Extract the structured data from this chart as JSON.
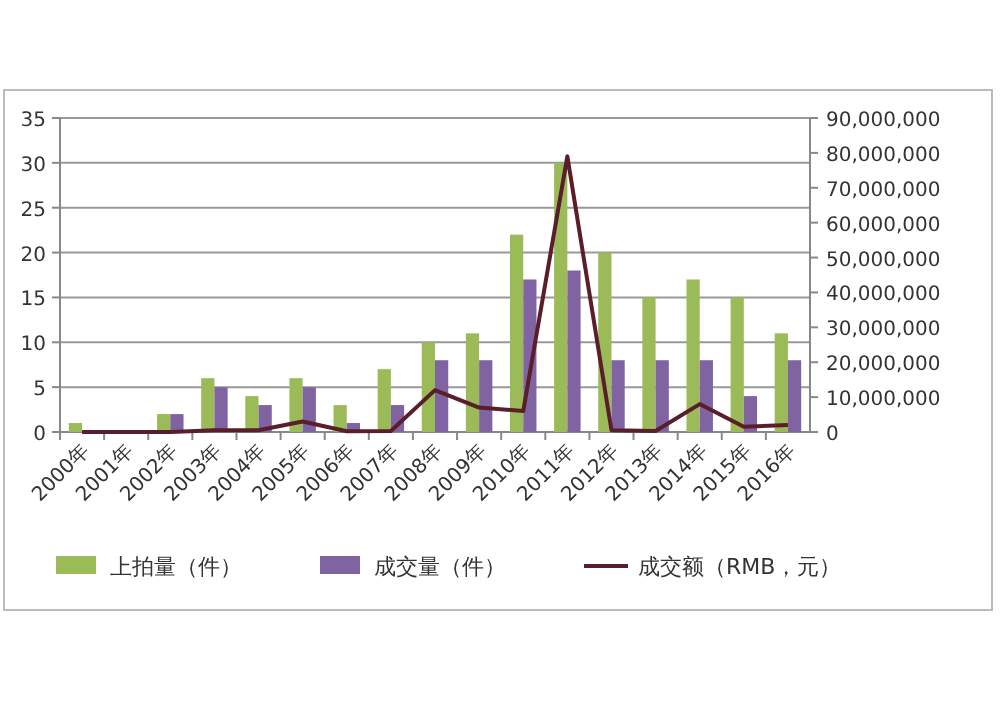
{
  "chart_data": {
    "type": "bar",
    "categories": [
      "2000年",
      "2001年",
      "2002年",
      "2003年",
      "2004年",
      "2005年",
      "2006年",
      "2007年",
      "2008年",
      "2009年",
      "2010年",
      "2011年",
      "2012年",
      "2013年",
      "2014年",
      "2015年",
      "2016年"
    ],
    "series": [
      {
        "name": "上拍量（件）",
        "color": "#9bbb59",
        "values": [
          1,
          0,
          2,
          6,
          4,
          6,
          3,
          7,
          10,
          11,
          22,
          30,
          20,
          15,
          17,
          15,
          11
        ]
      },
      {
        "name": "成交量（件）",
        "color": "#8064a2",
        "values": [
          0,
          0,
          2,
          5,
          3,
          5,
          1,
          3,
          8,
          8,
          17,
          18,
          8,
          8,
          8,
          4,
          8
        ]
      },
      {
        "name": "成交额（RMB，元）",
        "type": "line",
        "axis": "y2",
        "color": "#5a1e2a",
        "values": [
          0,
          0,
          0,
          500000,
          500000,
          3000000,
          200000,
          300000,
          12000000,
          7000000,
          6000000,
          79000000,
          500000,
          300000,
          8000000,
          1500000,
          2000000
        ]
      }
    ],
    "ylim": [
      0,
      35
    ],
    "yticks": [
      0,
      5,
      10,
      15,
      20,
      25,
      30,
      35
    ],
    "y2lim": [
      0,
      90000000
    ],
    "y2ticks": [
      {
        "value": 0,
        "label": "0"
      },
      {
        "value": 10000000,
        "label": "10,000,000"
      },
      {
        "value": 20000000,
        "label": "20,000,000"
      },
      {
        "value": 30000000,
        "label": "30,000,000"
      },
      {
        "value": 40000000,
        "label": "40,000,000"
      },
      {
        "value": 50000000,
        "label": "50,000,000"
      },
      {
        "value": 60000000,
        "label": "60,000,000"
      },
      {
        "value": 70000000,
        "label": "70,000,000"
      },
      {
        "value": 80000000,
        "label": "80,000,000"
      },
      {
        "value": 90000000,
        "label": "90,000,000"
      }
    ],
    "grid": "y",
    "legend": "bottom"
  }
}
